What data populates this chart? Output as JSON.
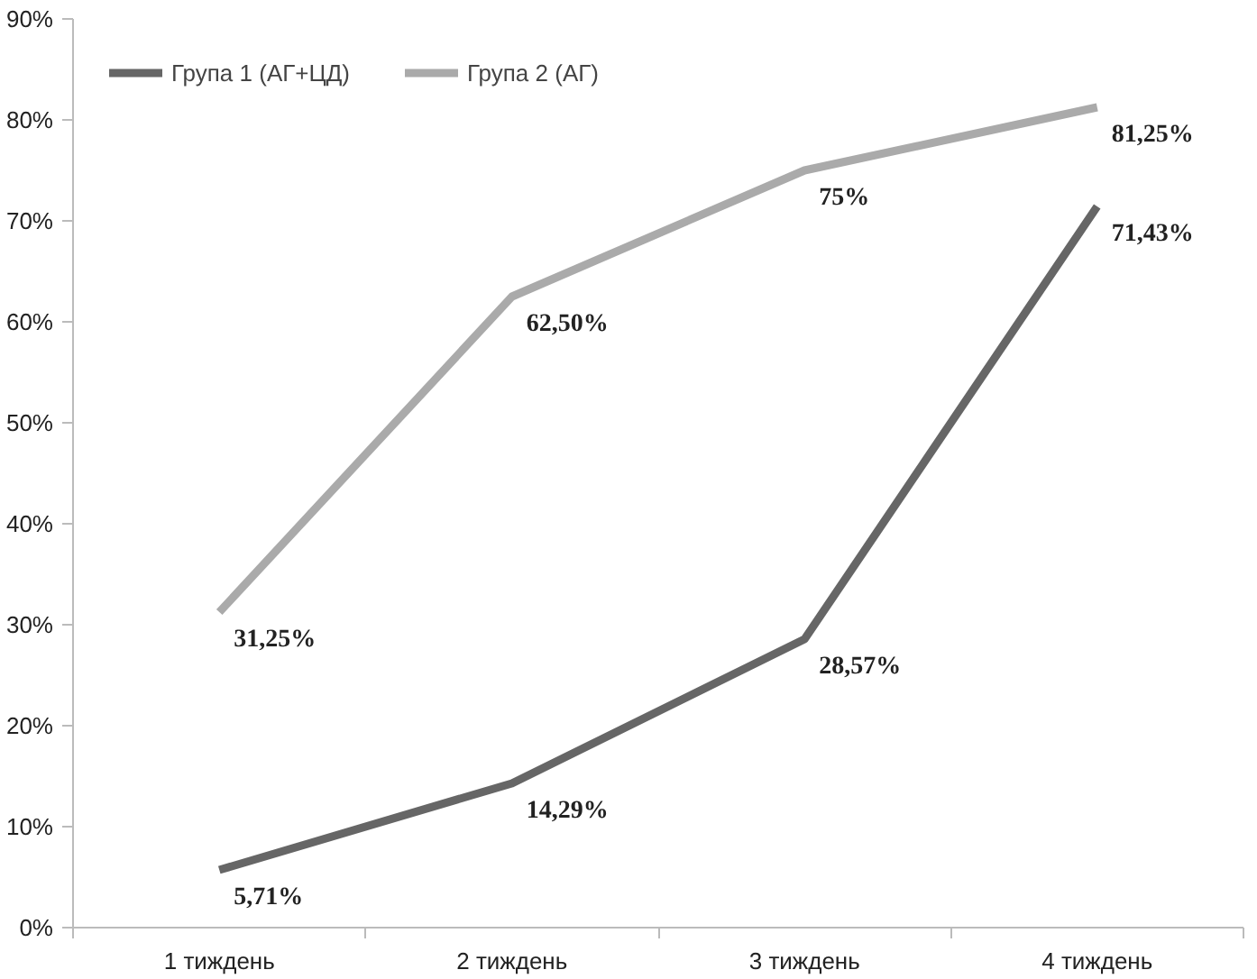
{
  "chart_data": {
    "type": "line",
    "categories": [
      "1 тиждень",
      "2 тиждень",
      "3 тиждень",
      "4 тиждень"
    ],
    "series": [
      {
        "name": "Група 1 (АГ+ЦД)",
        "color": "#666666",
        "values": [
          5.71,
          14.29,
          28.57,
          71.43
        ],
        "value_labels": [
          "5,71%",
          "14,29%",
          "28,57%",
          "71,43%"
        ]
      },
      {
        "name": "Група 2 (АГ)",
        "color": "#aaaaaa",
        "values": [
          31.25,
          62.5,
          75,
          81.25
        ],
        "value_labels": [
          "31,25%",
          "62,50%",
          "75%",
          "81,25%"
        ]
      }
    ],
    "ylim": [
      0,
      90
    ],
    "yticks": [
      {
        "value": 0,
        "label": "0%"
      },
      {
        "value": 10,
        "label": "10%"
      },
      {
        "value": 20,
        "label": "20%"
      },
      {
        "value": 30,
        "label": "30%"
      },
      {
        "value": 40,
        "label": "40%"
      },
      {
        "value": 50,
        "label": "50%"
      },
      {
        "value": 60,
        "label": "60%"
      },
      {
        "value": 70,
        "label": "70%"
      },
      {
        "value": 80,
        "label": "80%"
      },
      {
        "value": 90,
        "label": "90%"
      }
    ],
    "grid": false,
    "legend": "top left",
    "marker": "none",
    "line_style": "solid"
  }
}
